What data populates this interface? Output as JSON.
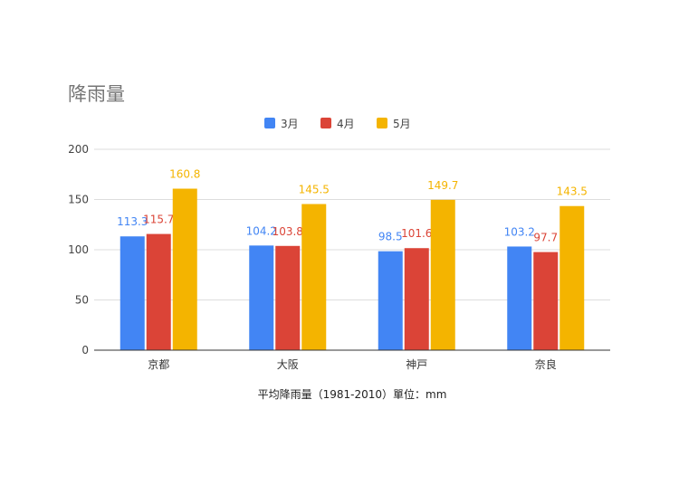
{
  "chart_data": {
    "type": "bar",
    "title": "降雨量",
    "xlabel": "平均降雨量（1981-2010）單位：mm",
    "ylabel": "",
    "ylim": [
      0,
      200
    ],
    "yticks": [
      0,
      50,
      100,
      150,
      200
    ],
    "grid": true,
    "legend": "top",
    "categories": [
      "京都",
      "大阪",
      "神戸",
      "奈良"
    ],
    "series": [
      {
        "name": "3月",
        "color": "#4285f4",
        "values": [
          113.3,
          104.2,
          98.5,
          103.2
        ],
        "labels": [
          "113.3",
          "104.2",
          "98.5",
          "103.2"
        ]
      },
      {
        "name": "4月",
        "color": "#db4437",
        "values": [
          115.7,
          103.8,
          101.6,
          97.7
        ],
        "labels": [
          "115.7",
          "103.8",
          "101.6",
          "97.7"
        ]
      },
      {
        "name": "5月",
        "color": "#f4b400",
        "values": [
          160.8,
          145.5,
          149.7,
          143.5
        ],
        "labels": [
          "160.8",
          "145.5",
          "149.7",
          "143.5"
        ]
      }
    ]
  }
}
